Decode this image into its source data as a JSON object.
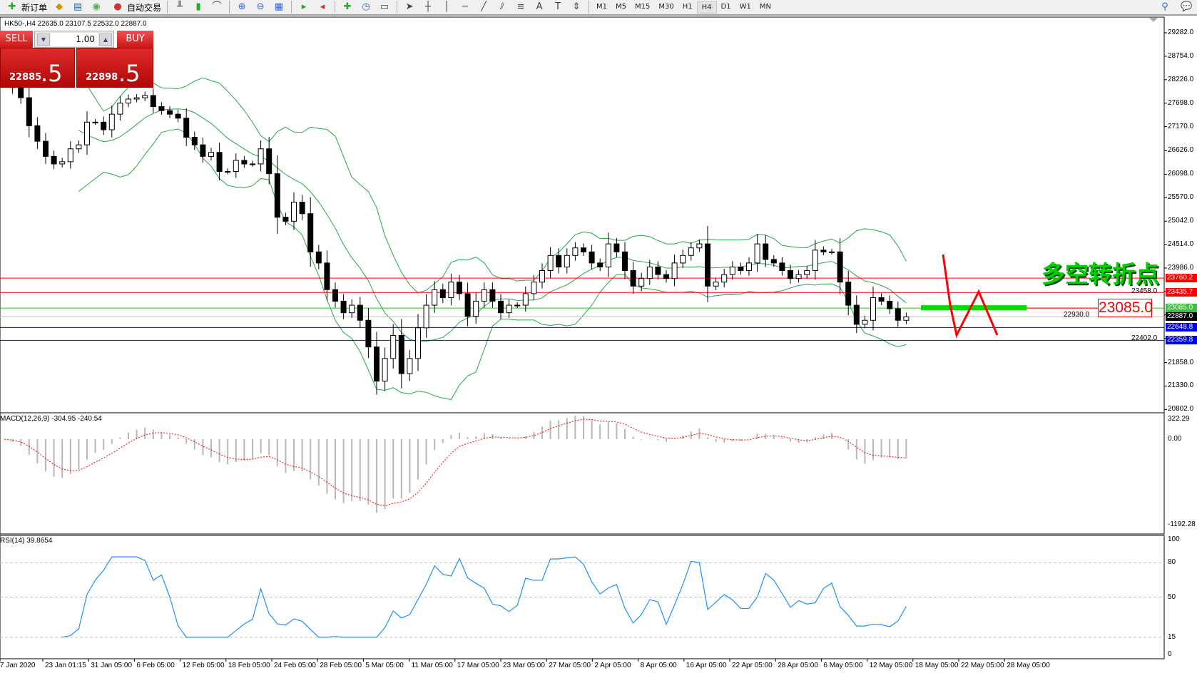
{
  "toolbar": {
    "new_order": "新订单",
    "auto_trade": "自动交易",
    "icons": [
      "new-order-icon",
      "gold-icon",
      "history-icon",
      "signal-icon",
      "auto-trade-icon",
      "bar-chart-icon",
      "candle-chart-icon",
      "line-chart-icon",
      "zoom-in-icon",
      "zoom-out-icon",
      "tile-icon",
      "autoscroll-icon",
      "chart-shift-icon",
      "indicators-icon",
      "clock-icon",
      "templates-icon",
      "cursor-icon",
      "crosshair-icon",
      "vertical-line-icon",
      "horizontal-line-icon",
      "trendline-icon",
      "equidistant-channel-icon",
      "fibonacci-icon",
      "text-icon",
      "text-label-icon",
      "arrows-icon"
    ],
    "periods": [
      "M1",
      "M5",
      "M15",
      "M30",
      "H1",
      "H4",
      "D1",
      "W1",
      "MN"
    ],
    "selected_period": "H4"
  },
  "chart": {
    "symbol_line": "HK50-,H4  22635.0 23107.5 22532.0 22887.0"
  },
  "trade_panel": {
    "sell_label": "SELL",
    "buy_label": "BUY",
    "volume": "1.00",
    "sell_price_main": "22885",
    "sell_price_big": ".5",
    "buy_price_main": "22898",
    "buy_price_big": ".5"
  },
  "colors": {
    "bands": "#22aa44",
    "up_line": "#ff0000",
    "support": "#0000ff",
    "pivot": "#22bb22",
    "annotation": "#ff0000",
    "bid": "#000000"
  },
  "chart_data": [
    {
      "type": "candlestick",
      "title": "HK50-,H4",
      "price_axis": [
        "29282.0",
        "28754.0",
        "28226.0",
        "27698.0",
        "27170.0",
        "26626.0",
        "26098.0",
        "25570.0",
        "25042.0",
        "24514.0",
        "23986.0",
        "23458.0",
        "22930.0",
        "22402.0",
        "21858.0",
        "21330.0",
        "20802.0"
      ],
      "ylim": [
        20802,
        29282
      ],
      "time_axis": [
        "7 Jan 2020",
        "23 Jan 01:15",
        "31 Jan 05:00",
        "6 Feb 05:00",
        "12 Feb 05:00",
        "18 Feb 05:00",
        "24 Feb 05:00",
        "28 Feb 05:00",
        "5 Mar 05:00",
        "11 Mar 05:00",
        "17 Mar 05:00",
        "23 Mar 05:00",
        "27 Mar 05:00",
        "2 Apr 05:00",
        "8 Apr 05:00",
        "16 Apr 05:00",
        "22 Apr 05:00",
        "28 Apr 05:00",
        "6 May 05:00",
        "12 May 05:00",
        "18 May 05:00",
        "22 May 05:00",
        "28 May 05:00"
      ],
      "closes": [
        28300,
        28050,
        27820,
        27190,
        26840,
        26500,
        26330,
        26380,
        26670,
        26760,
        27270,
        27270,
        27100,
        27450,
        27700,
        27790,
        27820,
        27870,
        27620,
        27530,
        27450,
        27360,
        26930,
        26760,
        26500,
        26590,
        26160,
        26160,
        26410,
        26330,
        26330,
        26670,
        26110,
        25130,
        25040,
        25470,
        25210,
        24350,
        24100,
        23500,
        23240,
        22980,
        23150,
        22810,
        22210,
        21440,
        21950,
        22470,
        21610,
        21950,
        22640,
        23150,
        23500,
        23320,
        23670,
        23410,
        22900,
        23240,
        23500,
        23240,
        22980,
        23150,
        23150,
        23410,
        23670,
        23930,
        24270,
        24010,
        24270,
        24440,
        24350,
        24100,
        24010,
        24530,
        24350,
        23930,
        23580,
        23750,
        24010,
        23840,
        23750,
        24100,
        24270,
        24440,
        24530,
        23580,
        23670,
        23840,
        24010,
        23930,
        24100,
        24530,
        24180,
        24100,
        23930,
        23750,
        23840,
        23930,
        24390,
        24350,
        24350,
        23670,
        23150,
        22720,
        22810,
        23320,
        23240,
        23070,
        22810,
        22887
      ],
      "indicator": "Bollinger Bands",
      "levels": [
        {
          "label": "23760.2",
          "value": 23760.2,
          "color": "#ff0000"
        },
        {
          "label": "23435.7",
          "value": 23435.7,
          "color": "#ff0000"
        },
        {
          "label": "23085.0",
          "value": 23085.0,
          "color": "#33bb33"
        },
        {
          "label": "22887.0",
          "value": 22887.0,
          "color": "#000000"
        },
        {
          "label": "22648.8",
          "value": 22648.8,
          "color": "#0000ff"
        },
        {
          "label": "22359.8",
          "value": 22359.8,
          "color": "#0000ff"
        }
      ],
      "annotations": {
        "price_label": "23085.0",
        "text": "多空转折点"
      }
    },
    {
      "type": "macd",
      "label": "MACD(12,26,9) -304.95 -240.54",
      "axis": [
        "322.29",
        "0.00",
        "-1192.28"
      ],
      "ylim": [
        -1192.28,
        322.29
      ]
    },
    {
      "type": "rsi",
      "label": "RSI(14) 39.8654",
      "axis": [
        "100",
        "80",
        "50",
        "15",
        "0"
      ],
      "ylim": [
        0,
        100
      ],
      "levels": [
        80,
        50,
        15
      ]
    }
  ]
}
